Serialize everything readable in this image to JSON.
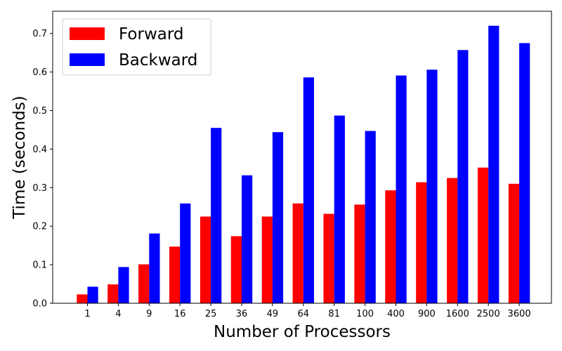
{
  "chart_data": {
    "type": "bar",
    "xlabel": "Number of Processors",
    "ylabel": "Time (seconds)",
    "categories": [
      "1",
      "4",
      "9",
      "16",
      "25",
      "36",
      "49",
      "64",
      "81",
      "100",
      "400",
      "900",
      "1600",
      "2500",
      "3600"
    ],
    "series": [
      {
        "name": "Forward",
        "color": "#ff0000",
        "values": [
          0.023,
          0.049,
          0.101,
          0.147,
          0.225,
          0.174,
          0.225,
          0.259,
          0.232,
          0.256,
          0.293,
          0.314,
          0.325,
          0.352,
          0.31
        ]
      },
      {
        "name": "Backward",
        "color": "#0000ff",
        "values": [
          0.043,
          0.094,
          0.181,
          0.259,
          0.455,
          0.332,
          0.444,
          0.586,
          0.487,
          0.447,
          0.591,
          0.606,
          0.657,
          0.72,
          0.675
        ]
      }
    ],
    "ylim": [
      0,
      0.7577
    ],
    "yticks": [
      "0.0",
      "0.1",
      "0.2",
      "0.3",
      "0.4",
      "0.5",
      "0.6",
      "0.7"
    ],
    "grid": false,
    "legend": "top-left"
  }
}
